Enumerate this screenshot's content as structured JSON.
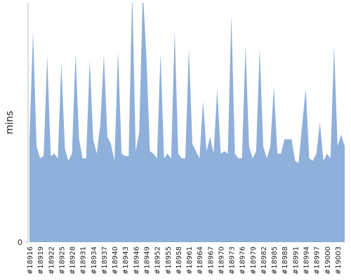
{
  "chart_data": {
    "type": "area",
    "y_label": "mins",
    "color": "#8eb0db",
    "ylim": [
      0,
      100
    ],
    "yticks": [
      0
    ],
    "categories": [
      "#18916",
      null,
      null,
      "#18919",
      null,
      null,
      "#18922",
      null,
      null,
      "#18925",
      null,
      null,
      "#18928",
      null,
      null,
      "#18931",
      null,
      null,
      "#18934",
      null,
      null,
      "#18937",
      null,
      null,
      "#18940",
      null,
      null,
      "#18943",
      null,
      null,
      "#18946",
      null,
      null,
      "#18949",
      null,
      null,
      "#18952",
      null,
      null,
      "#18955",
      null,
      null,
      "#18958",
      null,
      null,
      "#18961",
      null,
      null,
      "#18964",
      null,
      null,
      "#18967",
      null,
      null,
      "#18970",
      null,
      null,
      "#18973",
      null,
      null,
      "#18976",
      null,
      null,
      "#18979",
      null,
      null,
      "#18982",
      null,
      null,
      "#18985",
      null,
      null,
      "#18988",
      null,
      null,
      "#18991",
      null,
      null,
      "#18994",
      null,
      null,
      "#18997",
      null,
      null,
      "#19000",
      null,
      null,
      "#19003",
      null,
      null
    ],
    "values": [
      43,
      88,
      40,
      35,
      36,
      78,
      36,
      37,
      35,
      75,
      39,
      34,
      37,
      79,
      43,
      35,
      35,
      76,
      43,
      37,
      49,
      78,
      44,
      41,
      34,
      80,
      37,
      36,
      36,
      105,
      38,
      46,
      105,
      78,
      38,
      37,
      35,
      79,
      35,
      37,
      35,
      88,
      37,
      35,
      35,
      81,
      41,
      38,
      35,
      59,
      38,
      44,
      37,
      64,
      37,
      38,
      37,
      95,
      37,
      35,
      35,
      82,
      40,
      35,
      38,
      81,
      40,
      35,
      40,
      65,
      37,
      37,
      43,
      43,
      43,
      34,
      33,
      49,
      64,
      35,
      34,
      37,
      50,
      34,
      37,
      35,
      82,
      40,
      45,
      40
    ]
  }
}
